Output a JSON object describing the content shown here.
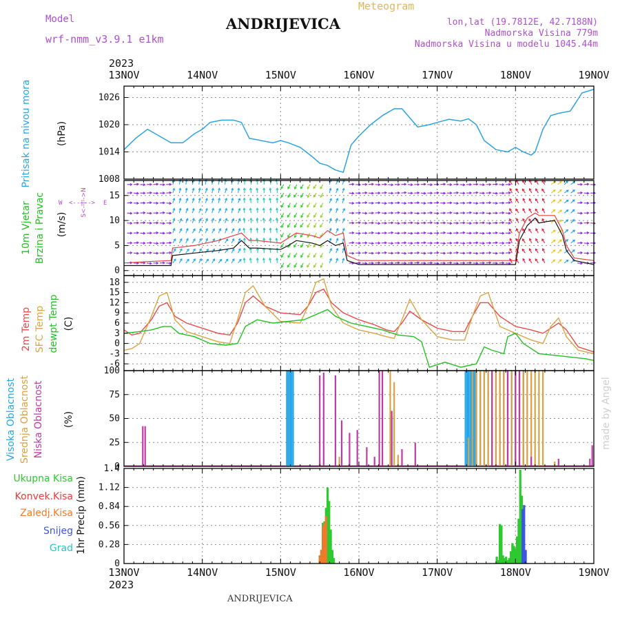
{
  "header": {
    "model_label": "Model",
    "model_name": "wrf-nmm_v3.9.1  e1km",
    "title": "ANDRIJEVICA",
    "meteogram_label": "Meteogram",
    "lonlat": "lon,lat (19.7812E, 42.7188N)",
    "altitude": "Nadmorska Visina 779m",
    "model_altitude": "Nadmorska Visina u modelu 1045.44m",
    "footer_title": "ANDRIJEVICA",
    "credit": "made by Angel"
  },
  "time_axis": {
    "year_top": "2023",
    "year_bottom": "2023",
    "labels": [
      "13NOV",
      "14NOV",
      "15NOV",
      "16NOV",
      "17NOV",
      "18NOV",
      "19NOV"
    ]
  },
  "colors": {
    "pressure": "#2aa3e0",
    "speed": "#111111",
    "gust": "#e83d3d",
    "temp2m": "#e84848",
    "sfc": "#d9a441",
    "dew": "#22c022",
    "low_cloud": "#c03aa6",
    "mid_cloud": "#dea040",
    "high_cloud": "#24a6e8",
    "total_precip": "#2ec92e",
    "conv_precip": "#ea3a3a",
    "frozen_precip": "#ee7b2c",
    "snow": "#3f55e0",
    "hail": "#24c7c7",
    "legend_purple": "#b04fd0",
    "title_orange": "#e3b55a"
  },
  "chart_data": [
    {
      "type": "line",
      "panel": "pressure",
      "ylabel_main": "Pritisak na nivou mora",
      "unit": "(hPa)",
      "yticks": [
        1008,
        1014,
        1020,
        1026
      ],
      "ylim": [
        1008,
        1028.5
      ],
      "x": [
        0,
        0.15,
        0.3,
        0.45,
        0.6,
        0.75,
        0.9,
        1.0,
        1.1,
        1.25,
        1.4,
        1.5,
        1.6,
        1.75,
        1.9,
        2.0,
        2.1,
        2.25,
        2.4,
        2.5,
        2.6,
        2.7,
        2.8,
        2.9,
        3.0,
        3.15,
        3.3,
        3.45,
        3.55,
        3.65,
        3.75,
        3.9,
        4.0,
        4.15,
        4.3,
        4.4,
        4.5,
        4.6,
        4.75,
        4.9,
        5.0,
        5.1,
        5.2,
        5.25,
        5.35,
        5.45,
        5.55,
        5.7,
        5.85,
        6.0
      ],
      "values": [
        1014.5,
        1017,
        1019,
        1017.5,
        1016,
        1016,
        1018,
        1019,
        1020.5,
        1021,
        1021,
        1020.5,
        1017,
        1016.5,
        1016,
        1016.5,
        1016,
        1015,
        1013,
        1011.5,
        1011,
        1010,
        1009.5,
        1015.5,
        1017.5,
        1020,
        1022,
        1023.5,
        1023.5,
        1021.5,
        1019.5,
        1020,
        1020.5,
        1021.2,
        1020.8,
        1021.3,
        1020,
        1016.5,
        1014.5,
        1014,
        1015,
        1014,
        1013.3,
        1014,
        1019,
        1022,
        1022.5,
        1023,
        1027,
        1027.8
      ]
    },
    {
      "type": "line",
      "panel": "wind",
      "ylabel_main": "10m Vjetar",
      "ylabel_sub": "Brzina i Pravac",
      "unit": "(m/s)",
      "yticks": [
        0,
        5,
        10,
        15
      ],
      "ylim": [
        -1,
        18
      ],
      "compass": [
        "W",
        "<--|-->",
        "E",
        "S<--|-->N"
      ],
      "speed": {
        "x": [
          0,
          0.3,
          0.6,
          0.62,
          0.9,
          1.2,
          1.4,
          1.5,
          1.6,
          1.7,
          2.0,
          2.1,
          2.2,
          2.4,
          2.5,
          2.6,
          2.7,
          2.8,
          2.85,
          3.0,
          3.5,
          4.0,
          4.5,
          4.8,
          5.0,
          5.05,
          5.15,
          5.25,
          5.3,
          5.4,
          5.5,
          5.6,
          5.65,
          5.75,
          6.0
        ],
        "values": [
          1,
          1,
          1,
          3,
          3.5,
          4,
          4.5,
          6,
          4.5,
          4.5,
          4.2,
          5,
          6,
          5.5,
          5,
          6,
          5,
          5.5,
          2,
          1.2,
          1.2,
          1.2,
          1.2,
          1.2,
          1.2,
          6,
          9,
          10.5,
          9.5,
          9.8,
          10,
          7,
          4,
          2,
          1.2
        ]
      },
      "gust": {
        "x": [
          0,
          0.3,
          0.6,
          0.62,
          0.9,
          1.2,
          1.4,
          1.5,
          1.6,
          1.7,
          2.0,
          2.1,
          2.2,
          2.4,
          2.5,
          2.6,
          2.7,
          2.8,
          2.85,
          3.0,
          3.5,
          4.0,
          4.5,
          4.8,
          5.0,
          5.05,
          5.15,
          5.25,
          5.3,
          5.4,
          5.5,
          5.6,
          5.65,
          5.75,
          6.0
        ],
        "values": [
          1.5,
          1.8,
          2,
          4.5,
          5,
          6,
          7,
          7.5,
          6,
          6,
          5.5,
          6.5,
          7.5,
          7,
          6.5,
          8,
          7,
          7.5,
          3,
          2,
          2,
          2,
          2,
          2,
          2,
          7.5,
          10.5,
          11.5,
          11,
          11,
          11,
          8,
          5,
          2.5,
          2
        ]
      }
    },
    {
      "type": "line",
      "panel": "temperature",
      "labels": [
        "2m Temp",
        "SFC Temp",
        "dewpt Temp"
      ],
      "unit": "(C)",
      "yticks": [
        -6,
        -3,
        0,
        3,
        6,
        9,
        12,
        15,
        18
      ],
      "ylim": [
        -8,
        20
      ],
      "series": [
        {
          "name": "2m Temp",
          "key": "temp2m",
          "x": [
            0,
            0.1,
            0.2,
            0.35,
            0.45,
            0.55,
            0.65,
            0.8,
            1.0,
            1.2,
            1.35,
            1.45,
            1.55,
            1.65,
            1.8,
            2.0,
            2.25,
            2.35,
            2.45,
            2.55,
            2.65,
            2.8,
            3.0,
            3.2,
            3.35,
            3.45,
            3.55,
            3.65,
            3.8,
            4.0,
            4.2,
            4.35,
            4.45,
            4.55,
            4.65,
            4.8,
            5.0,
            5.2,
            5.35,
            5.45,
            5.55,
            5.65,
            5.8,
            6.0
          ],
          "values": [
            4,
            2.5,
            3,
            7,
            11,
            12,
            8,
            6,
            4.5,
            3,
            2.5,
            6,
            12,
            14,
            11,
            9,
            8.5,
            11,
            15,
            16,
            12,
            9,
            7,
            5.5,
            4,
            3.5,
            6,
            9.5,
            7,
            4.5,
            3.5,
            3.5,
            8,
            12,
            12,
            8,
            5,
            4,
            3,
            4.5,
            6,
            4,
            -1,
            -2.5
          ]
        },
        {
          "name": "SFC Temp",
          "key": "sfc",
          "x": [
            0,
            0.1,
            0.2,
            0.35,
            0.45,
            0.55,
            0.65,
            0.8,
            1.0,
            1.2,
            1.35,
            1.45,
            1.55,
            1.65,
            1.8,
            2.0,
            2.25,
            2.35,
            2.45,
            2.55,
            2.65,
            2.8,
            3.0,
            3.2,
            3.35,
            3.45,
            3.55,
            3.65,
            3.8,
            4.0,
            4.2,
            4.35,
            4.45,
            4.55,
            4.65,
            4.8,
            5.0,
            5.2,
            5.35,
            5.45,
            5.55,
            5.65,
            5.8,
            6.0
          ],
          "values": [
            -2,
            -1.5,
            0,
            8,
            14,
            15,
            7,
            3.5,
            2,
            0.5,
            0,
            7,
            15,
            17,
            11,
            6.5,
            6,
            11,
            18,
            19,
            11,
            6,
            4,
            3,
            2,
            1.5,
            7,
            13,
            7,
            2,
            1,
            1,
            8,
            14,
            15,
            5,
            3,
            1,
            0,
            5,
            7.5,
            2,
            -2,
            -3
          ]
        },
        {
          "name": "dewpt Temp",
          "key": "dew",
          "x": [
            0,
            0.2,
            0.35,
            0.5,
            0.6,
            0.7,
            0.9,
            1.1,
            1.3,
            1.45,
            1.55,
            1.7,
            1.9,
            2.1,
            2.3,
            2.5,
            2.6,
            2.7,
            2.9,
            3.1,
            3.3,
            3.5,
            3.7,
            3.8,
            3.9,
            4.1,
            4.3,
            4.5,
            4.6,
            4.7,
            4.85,
            4.9,
            5.0,
            5.1,
            5.3,
            5.5,
            5.7,
            5.9,
            6.0
          ],
          "values": [
            3,
            3.5,
            4,
            5,
            5,
            3,
            2,
            0,
            -0.5,
            0,
            5,
            7,
            6,
            6.5,
            7,
            9,
            10,
            8,
            6,
            5,
            4,
            2.5,
            2,
            0.5,
            -7,
            -5.5,
            -7,
            -6,
            -1,
            -2,
            -3,
            2,
            3,
            0,
            -3,
            -3.5,
            -4,
            -4.5,
            -5
          ]
        }
      ]
    },
    {
      "type": "bar",
      "panel": "clouds",
      "labels": [
        "Visoka Oblacnost",
        "Srednja Oblacnost",
        "Niska Oblacnost"
      ],
      "unit": "(%)",
      "yticks": [
        0,
        25,
        50,
        75,
        100
      ],
      "ylim": [
        0,
        100
      ],
      "series": [
        {
          "name": "Visoka Oblacnost",
          "key": "high_cloud",
          "x": [
            2.08,
            2.1,
            2.12,
            2.14,
            2.16,
            4.36,
            4.38,
            4.4,
            4.42,
            4.44,
            4.46,
            4.48,
            4.5,
            4.55,
            4.6,
            4.65,
            4.7,
            4.75,
            4.8,
            4.85,
            4.9,
            4.95,
            5.0,
            5.05,
            5.1,
            5.15,
            5.2
          ],
          "values": [
            100,
            100,
            100,
            100,
            100,
            100,
            100,
            100,
            100,
            100,
            100,
            100,
            100,
            100,
            100,
            100,
            100,
            100,
            100,
            100,
            100,
            100,
            100,
            100,
            100,
            100,
            100
          ]
        },
        {
          "name": "Srednja Oblacnost",
          "key": "mid_cloud",
          "x": [
            2.5,
            2.75,
            3.4,
            3.45,
            3.5,
            4.4,
            4.45,
            4.5,
            4.55,
            4.6,
            4.65,
            4.7,
            4.75,
            4.8,
            4.85,
            4.9,
            4.95,
            5.0,
            5.05,
            5.1,
            5.15,
            5.2,
            5.25,
            5.3,
            5.35,
            5.5
          ],
          "values": [
            5,
            10,
            100,
            88,
            12,
            30,
            100,
            100,
            100,
            100,
            100,
            100,
            100,
            100,
            100,
            100,
            100,
            100,
            100,
            100,
            100,
            100,
            100,
            100,
            100,
            5
          ]
        },
        {
          "name": "Niska Oblacnost",
          "key": "low_cloud",
          "x": [
            0.24,
            0.27,
            2.5,
            2.55,
            2.7,
            2.78,
            2.88,
            2.98,
            3.1,
            3.2,
            3.26,
            3.3,
            3.42,
            3.55,
            3.72,
            4.7,
            4.9,
            5.0,
            5.05,
            5.2,
            5.55,
            5.95,
            5.98
          ],
          "values": [
            42,
            42,
            95,
            98,
            95,
            48,
            35,
            38,
            20,
            10,
            100,
            100,
            58,
            18,
            25,
            100,
            100,
            100,
            100,
            10,
            8,
            8,
            22
          ]
        }
      ]
    },
    {
      "type": "bar",
      "panel": "precip",
      "labels": [
        "Ukupna Kisa",
        "Konvek.Kisa",
        "Zaledj.Kisa",
        "Snijeg",
        "Grad"
      ],
      "unit": "1hr Precip (mm)",
      "yticks": [
        0,
        0.28,
        0.56,
        0.84,
        1.12,
        1.4
      ],
      "ylim": [
        0,
        1.4
      ],
      "series": [
        {
          "name": "Ukupna Kisa",
          "key": "total_precip",
          "x": [
            2.5,
            2.52,
            2.54,
            2.56,
            2.58,
            2.6,
            2.62,
            2.64,
            2.66,
            2.68,
            4.76,
            4.78,
            4.8,
            4.82,
            4.84,
            4.86,
            4.88,
            4.9,
            4.92,
            4.94,
            4.96,
            4.98,
            5.0,
            5.02,
            5.04,
            5.06,
            5.08,
            5.1
          ],
          "values": [
            0.12,
            0.2,
            0.6,
            0.62,
            0.82,
            1.12,
            0.92,
            0.5,
            0.2,
            0.08,
            0.1,
            0.05,
            0.58,
            0.56,
            0.12,
            0.08,
            0.1,
            0.05,
            0.08,
            0.18,
            0.3,
            0.26,
            0.22,
            0.4,
            0.66,
            1.38,
            1.0,
            0.74
          ]
        },
        {
          "name": "Konvek.Kisa",
          "key": "conv_precip",
          "x": [
            2.52,
            2.54,
            2.56
          ],
          "values": [
            0.1,
            0.45,
            0.3
          ]
        },
        {
          "name": "Zaledj.Kisa",
          "key": "frozen_precip",
          "x": [
            2.5,
            2.52,
            2.54,
            2.56,
            2.58
          ],
          "values": [
            0.1,
            0.2,
            0.55,
            0.6,
            0.7
          ]
        },
        {
          "name": "Snijeg",
          "key": "snow",
          "x": [
            5.09,
            5.11,
            5.13
          ],
          "values": [
            0.8,
            0.86,
            0.2
          ]
        },
        {
          "name": "Grad",
          "key": "hail",
          "x": [],
          "values": []
        }
      ]
    }
  ]
}
